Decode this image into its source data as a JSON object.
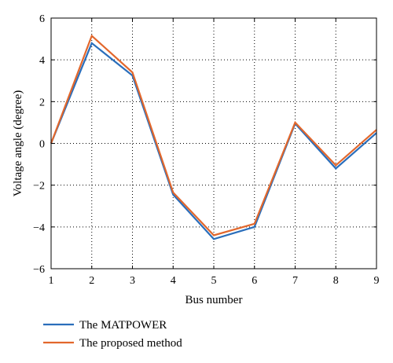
{
  "chart_data": {
    "type": "line",
    "title": "",
    "xlabel": "Bus number",
    "ylabel": "Voltage angle (degree)",
    "x": [
      1,
      2,
      3,
      4,
      5,
      6,
      7,
      8,
      9
    ],
    "xlim": [
      1,
      9
    ],
    "ylim": [
      -6,
      6
    ],
    "xticks": [
      1,
      2,
      3,
      4,
      5,
      6,
      7,
      8,
      9
    ],
    "yticks": [
      -6,
      -4,
      -2,
      0,
      2,
      4,
      6
    ],
    "grid": true,
    "legend_position": "below",
    "series": [
      {
        "name": "The MATPOWER",
        "color": "#2a6ebb",
        "values": [
          0,
          4.8,
          3.25,
          -2.45,
          -4.58,
          -4.0,
          0.95,
          -1.2,
          0.5
        ]
      },
      {
        "name": "The proposed method",
        "color": "#e2672c",
        "values": [
          0,
          5.15,
          3.4,
          -2.35,
          -4.4,
          -3.85,
          1.0,
          -1.05,
          0.65
        ]
      }
    ]
  }
}
